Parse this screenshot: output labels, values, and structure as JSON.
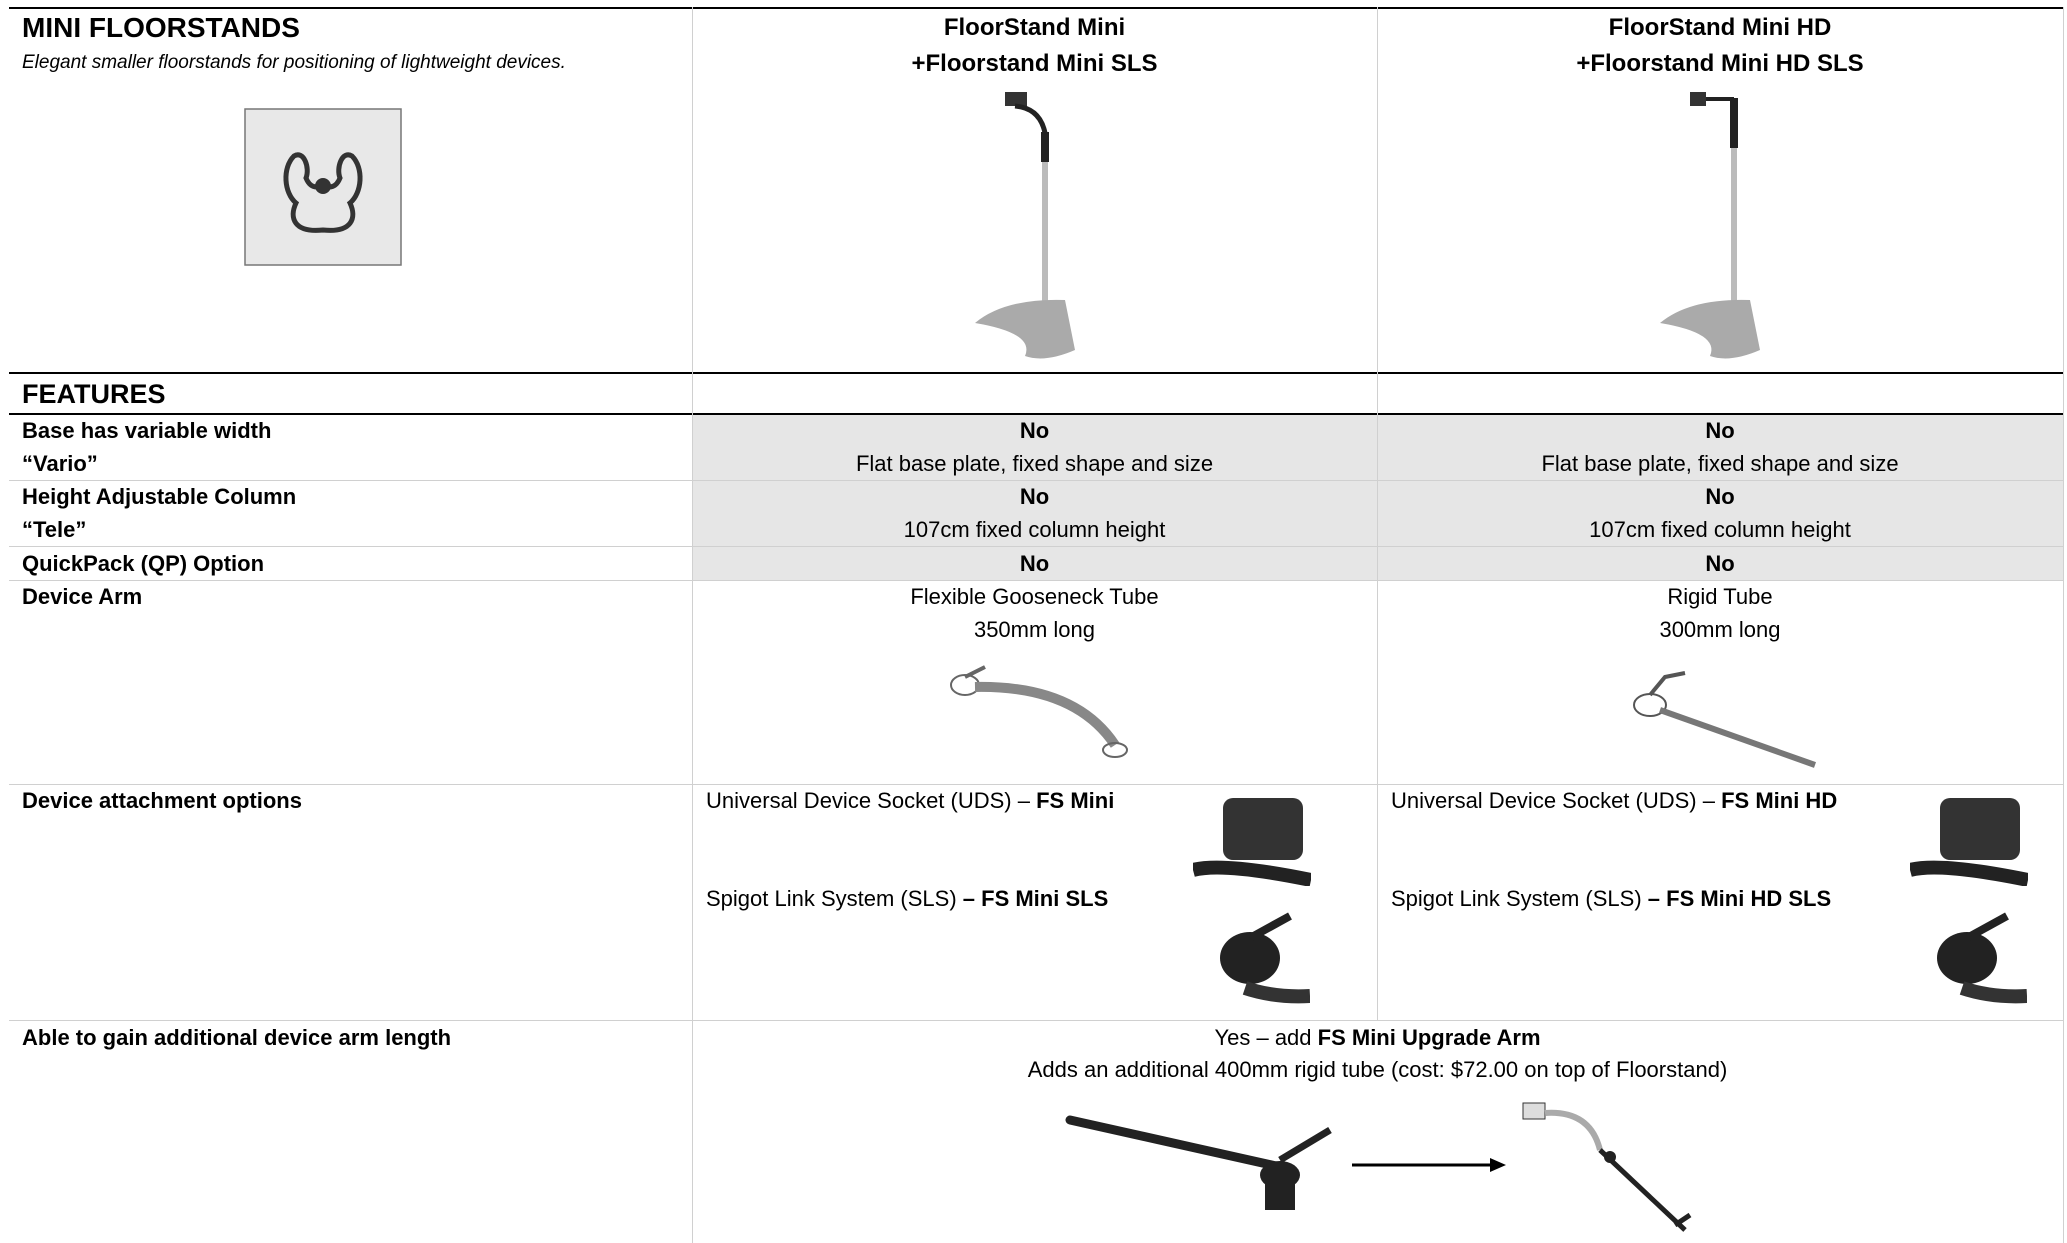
{
  "header": {
    "title": "MINI FLOORSTANDS",
    "subtitle": "Elegant smaller floorstands for positioning of lightweight devices.",
    "products": [
      {
        "lines": [
          "FloorStand Mini",
          "+Floorstand Mini SLS"
        ]
      },
      {
        "lines": [
          "FloorStand Mini HD",
          "+Floorstand Mini HD SLS"
        ]
      }
    ]
  },
  "features_heading": "FEATURES",
  "rows": [
    {
      "label_lines": [
        "Base has variable width",
        "“Vario”"
      ],
      "cells": [
        [
          "No",
          "Flat base plate, fixed shape and size"
        ],
        [
          "No",
          "Flat base plate, fixed shape and size"
        ]
      ]
    },
    {
      "label_lines": [
        "Height Adjustable Column",
        "“Tele”"
      ],
      "cells": [
        [
          "No",
          "107cm fixed column height"
        ],
        [
          "No",
          "107cm fixed column height"
        ]
      ]
    },
    {
      "label_lines": [
        "QuickPack (QP) Option"
      ],
      "cells": [
        [
          "No"
        ],
        [
          "No"
        ]
      ]
    },
    {
      "label_lines": [
        "Device Arm"
      ],
      "cells": [
        [
          "Flexible Gooseneck Tube",
          "350mm long"
        ],
        [
          "Rigid Tube",
          "300mm long"
        ]
      ]
    }
  ],
  "attachment": {
    "label": "Device attachment options",
    "cells": [
      {
        "uds_text": "Universal Device Socket (UDS) – ",
        "uds_bold": "FS Mini",
        "sls_text": "Spigot Link System (SLS) ",
        "sls_bold": "– FS Mini SLS"
      },
      {
        "uds_text": "Universal Device Socket (UDS) – ",
        "uds_bold": "FS Mini HD",
        "sls_text": "Spigot Link System (SLS) ",
        "sls_bold": "– FS Mini HD SLS"
      }
    ]
  },
  "arm_length": {
    "label": "Able to gain additional device arm length",
    "line1_text": "Yes – add ",
    "line1_bold": "FS Mini Upgrade Arm",
    "line2": "Adds an additional 400mm rigid tube (cost: $72.00 on top of Floorstand)"
  }
}
